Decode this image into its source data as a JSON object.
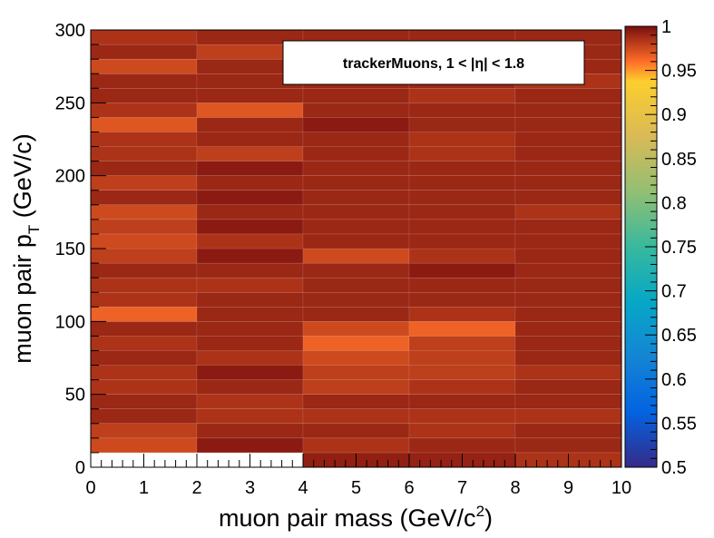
{
  "chart_data": {
    "type": "heatmap",
    "title": "",
    "annotation": {
      "name": "trackerMuons",
      "range": "1 < |η| < 1.8"
    },
    "xlabel": {
      "main": "muon pair mass (GeV/c",
      "sup": "2",
      "end": ")"
    },
    "ylabel": {
      "main": "muon pair p",
      "sub": "T",
      "end": " (GeV/c)"
    },
    "xlim": [
      0,
      10
    ],
    "ylim": [
      0,
      300
    ],
    "zlim": [
      0.5,
      1
    ],
    "x_edges": [
      0,
      2,
      4,
      6,
      8,
      10
    ],
    "y_edges": [
      0,
      10,
      20,
      30,
      40,
      50,
      60,
      70,
      80,
      90,
      100,
      110,
      120,
      130,
      140,
      150,
      160,
      170,
      180,
      190,
      200,
      210,
      220,
      230,
      240,
      250,
      260,
      270,
      280,
      290,
      300
    ],
    "x_ticks": [
      "0",
      "1",
      "2",
      "3",
      "4",
      "5",
      "6",
      "7",
      "8",
      "9",
      "10"
    ],
    "y_ticks": [
      "0",
      "50",
      "100",
      "150",
      "200",
      "250",
      "300"
    ],
    "z_ticks": [
      "0.5",
      "0.55",
      "0.6",
      "0.65",
      "0.7",
      "0.75",
      "0.8",
      "0.85",
      "0.9",
      "0.95",
      "1"
    ],
    "values": [
      [
        null,
        null,
        0.993,
        0.992,
        0.985
      ],
      [
        0.975,
        0.995,
        0.985,
        0.99,
        0.99
      ],
      [
        0.98,
        0.99,
        0.99,
        0.985,
        0.99
      ],
      [
        0.99,
        0.985,
        0.985,
        0.985,
        0.985
      ],
      [
        0.99,
        0.985,
        0.99,
        0.99,
        0.99
      ],
      [
        0.985,
        0.99,
        0.98,
        0.985,
        0.99
      ],
      [
        0.985,
        0.995,
        0.98,
        0.98,
        0.985
      ],
      [
        0.99,
        0.985,
        0.975,
        0.98,
        0.99
      ],
      [
        0.985,
        0.99,
        0.965,
        0.98,
        0.99
      ],
      [
        0.99,
        0.99,
        0.975,
        0.965,
        0.99
      ],
      [
        0.965,
        0.99,
        0.99,
        0.985,
        0.99
      ],
      [
        0.985,
        0.99,
        0.99,
        0.99,
        0.99
      ],
      [
        0.985,
        0.985,
        0.99,
        0.99,
        0.99
      ],
      [
        0.99,
        0.99,
        0.99,
        0.995,
        0.99
      ],
      [
        0.98,
        0.995,
        0.975,
        0.985,
        0.99
      ],
      [
        0.975,
        0.985,
        0.99,
        0.99,
        0.99
      ],
      [
        0.98,
        0.995,
        0.99,
        0.99,
        0.99
      ],
      [
        0.975,
        0.99,
        0.99,
        0.99,
        0.985
      ],
      [
        0.99,
        0.995,
        0.99,
        0.99,
        0.99
      ],
      [
        0.98,
        0.99,
        0.99,
        0.99,
        0.99
      ],
      [
        0.99,
        0.995,
        0.99,
        0.99,
        0.99
      ],
      [
        0.985,
        0.98,
        0.99,
        0.985,
        0.99
      ],
      [
        0.985,
        0.99,
        0.99,
        0.985,
        0.99
      ],
      [
        0.97,
        0.99,
        0.995,
        0.99,
        0.99
      ],
      [
        0.985,
        0.97,
        0.99,
        0.99,
        0.99
      ],
      [
        0.99,
        0.99,
        0.99,
        0.985,
        0.99
      ],
      [
        0.99,
        0.99,
        0.99,
        0.99,
        0.985
      ],
      [
        0.975,
        0.99,
        0.99,
        0.99,
        0.99
      ],
      [
        0.99,
        0.98,
        0.99,
        0.99,
        0.99
      ],
      [
        0.985,
        0.99,
        0.99,
        0.99,
        0.99
      ]
    ],
    "legend": "top-right",
    "colorbar": "right",
    "grid": false
  }
}
